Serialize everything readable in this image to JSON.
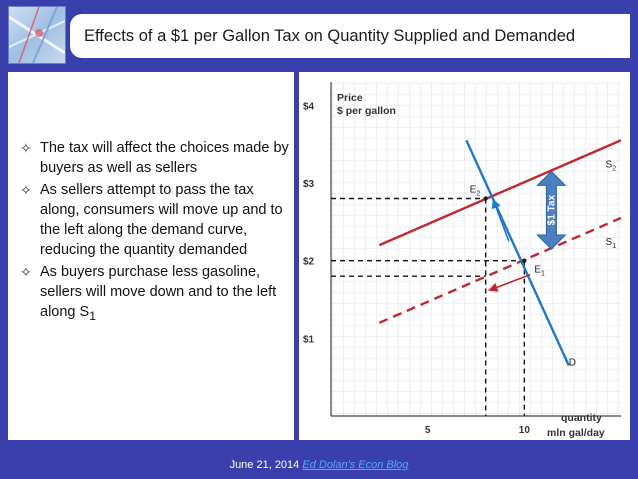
{
  "slide": {
    "title": "Effects of a $1 per Gallon Tax on Quantity Supplied and Demanded",
    "bullets": [
      {
        "text": "The tax will affect the choices made by buyers as well as sellers"
      },
      {
        "text": "As sellers attempt to pass the tax along, consumers will move up and to the left along the demand curve, reducing the quantity demanded"
      },
      {
        "text": "As buyers purchase less gasoline, sellers will move down and to the left along S",
        "subscript": "1"
      }
    ],
    "bullet_icon": "four-point-star-outline-icon",
    "footer": {
      "date": "June 21, 2014",
      "link_text": "Ed Dolan's Econ Blog"
    }
  },
  "diagram": {
    "y_axis_title_line1": "Price",
    "y_axis_title_line2": "$ per gallon",
    "x_axis_title_line1": "quantity",
    "x_axis_title_line2": "mln gal/day",
    "y_ticks": [
      {
        "label": "$4",
        "value": 4
      },
      {
        "label": "$3",
        "value": 3
      },
      {
        "label": "$2",
        "value": 2
      },
      {
        "label": "$1",
        "value": 1
      }
    ],
    "x_ticks": [
      {
        "label": "5",
        "value": 5
      },
      {
        "label": "10",
        "value": 10
      }
    ],
    "x_range": [
      0,
      15
    ],
    "y_range": [
      0,
      4.3
    ],
    "curves": {
      "demand": {
        "label": "D",
        "color": "#1f78c8",
        "from": [
          7,
          3.55
        ],
        "to": [
          12.3,
          0.65
        ]
      },
      "supply_with_tax": {
        "label": "S",
        "label_sub": "2",
        "color": "#c0282d",
        "from": [
          2.5,
          2.2
        ],
        "to": [
          15,
          3.55
        ]
      },
      "supply_original": {
        "label": "S",
        "label_sub": "1",
        "color": "#c0282d",
        "from": [
          2.5,
          1.2
        ],
        "to": [
          15,
          2.55
        ]
      }
    },
    "equilibria": [
      {
        "label": "E",
        "label_sub": "2",
        "x": 8,
        "y": 2.8
      },
      {
        "label": "E",
        "label_sub": "1",
        "x": 10,
        "y": 2.0
      }
    ],
    "tax_arrow": {
      "label": "$1 Tax",
      "color": "#4a7fc2",
      "x": 11.4,
      "y_top": 3.15,
      "y_bottom": 2.15
    },
    "movement_arrows": [
      {
        "name": "along-demand",
        "color": "#1f78c8",
        "from": [
          9.2,
          2.25
        ],
        "to": [
          8.4,
          2.78
        ]
      },
      {
        "name": "along-s1",
        "color": "#c0282d",
        "from": [
          10.3,
          1.82
        ],
        "to": [
          8.2,
          1.62
        ]
      }
    ]
  }
}
